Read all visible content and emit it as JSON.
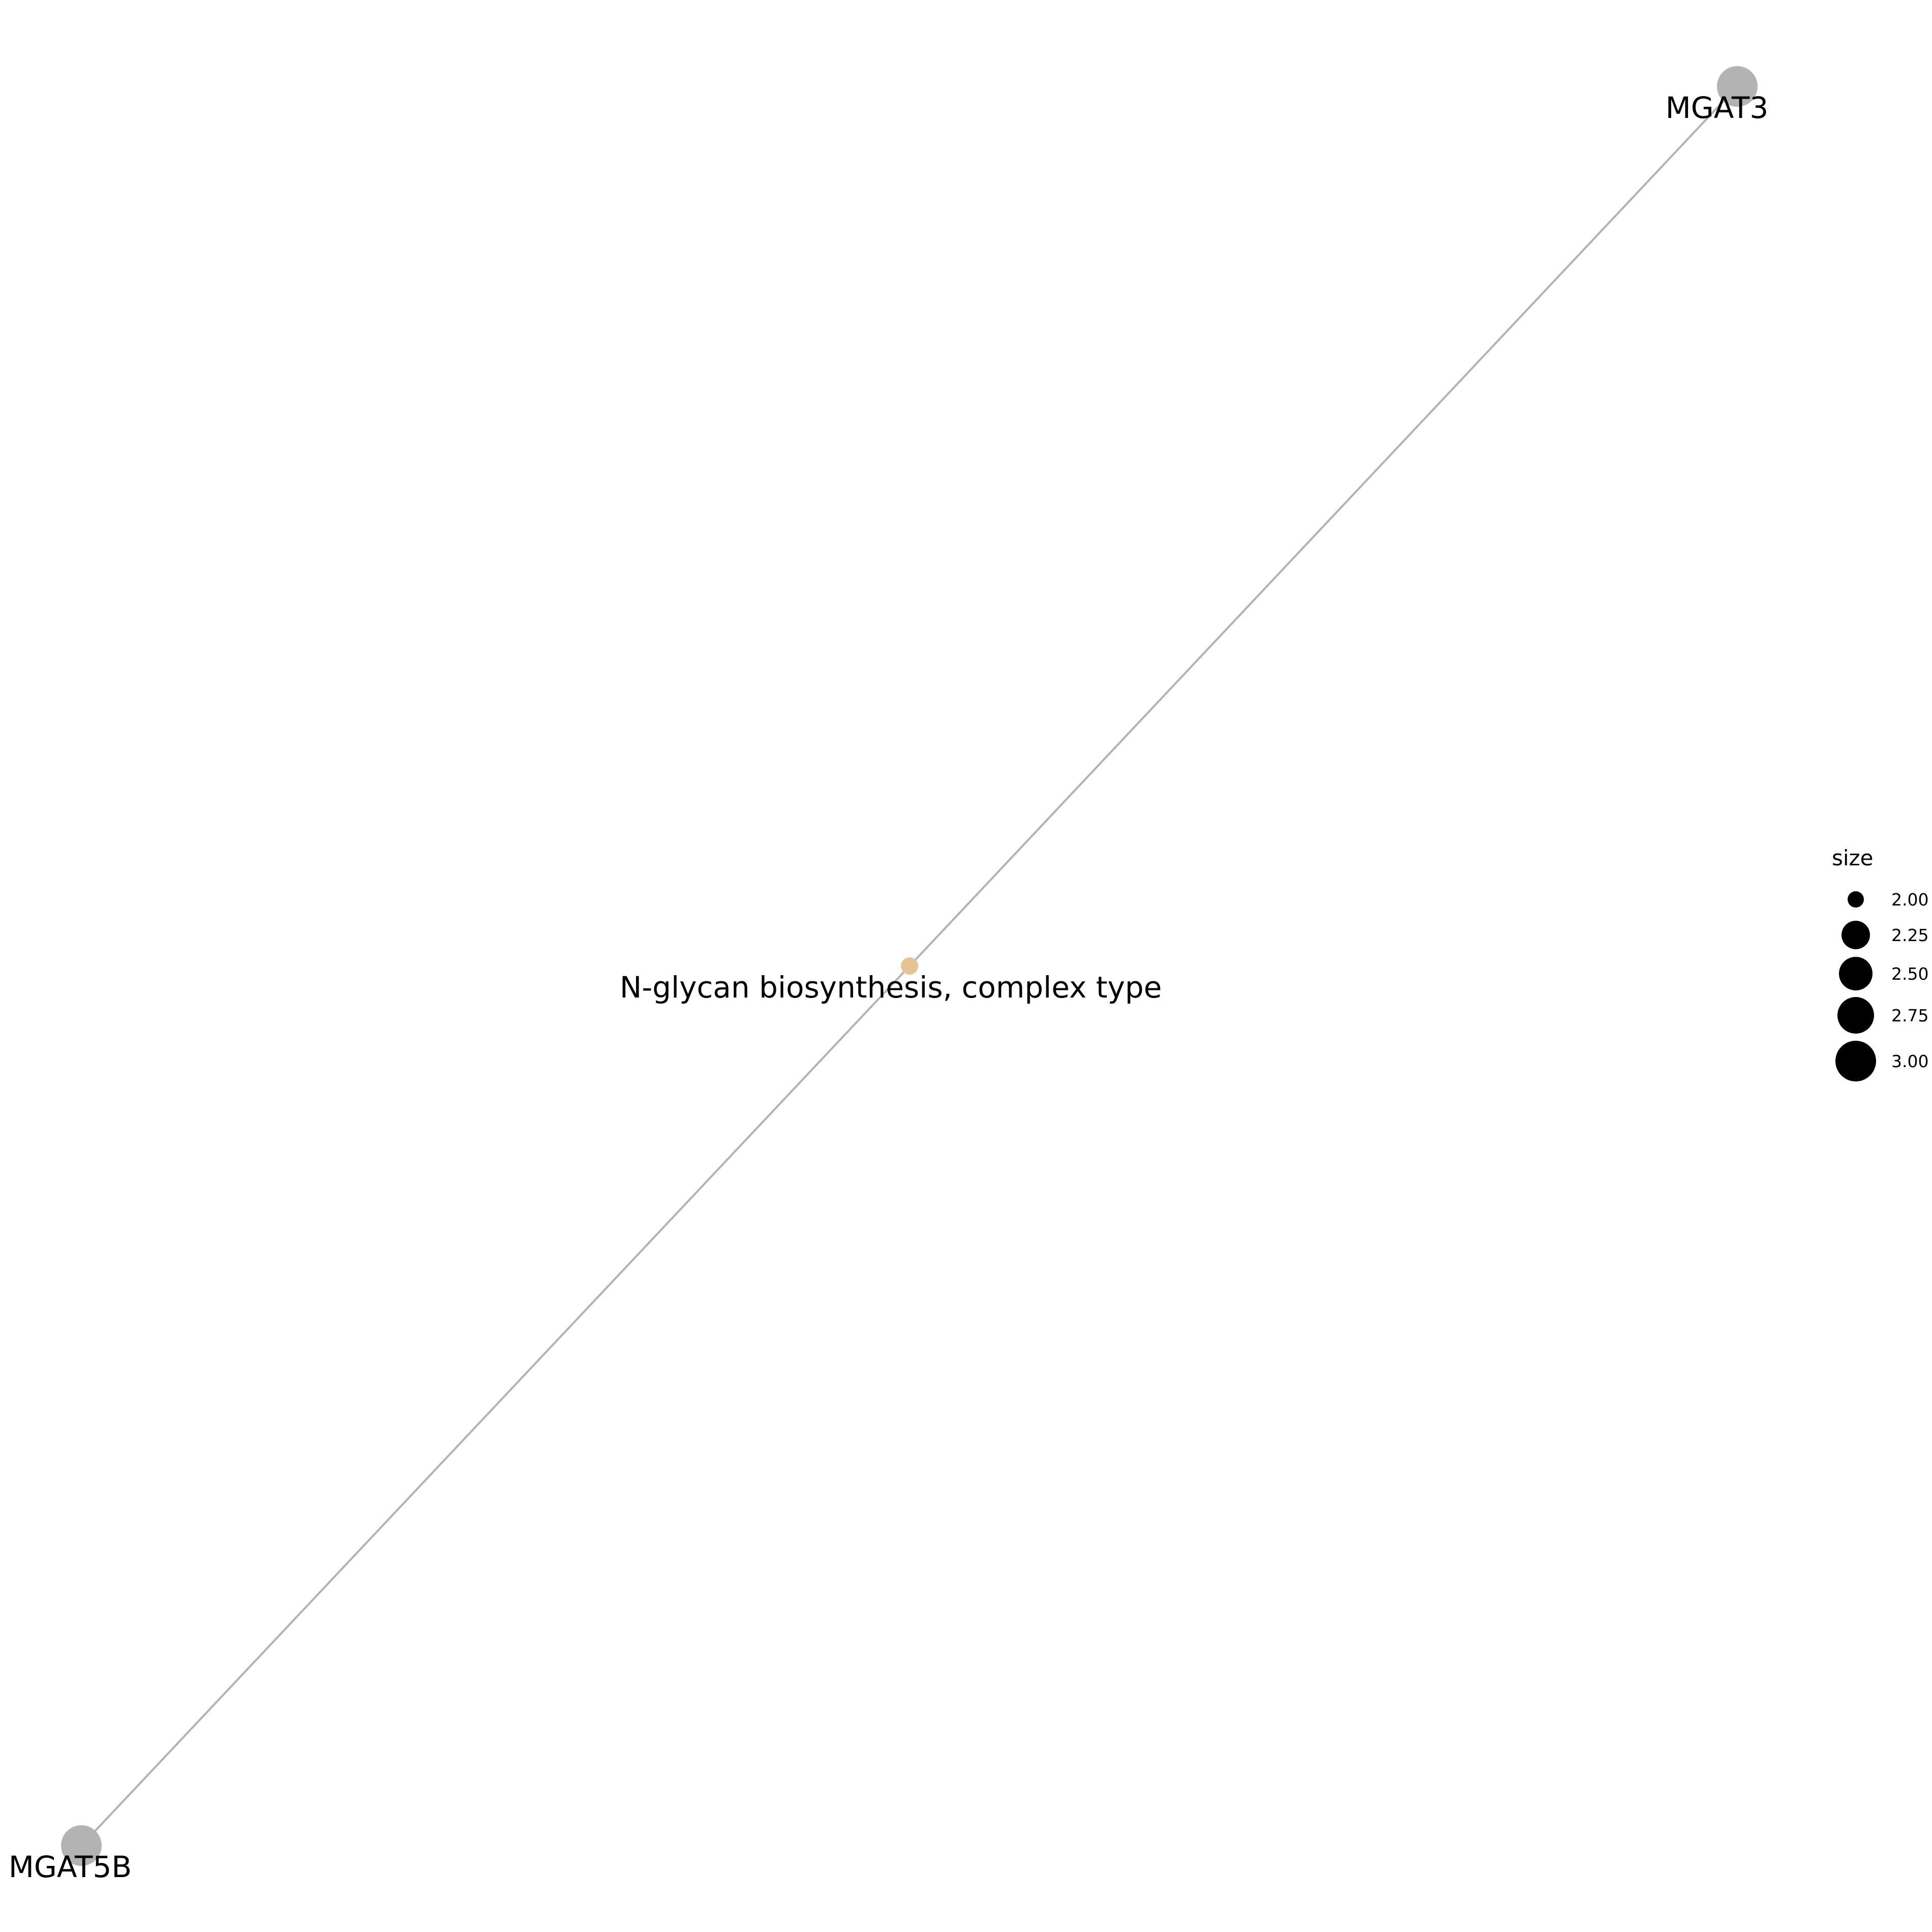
{
  "network": {
    "nodes": [
      {
        "id": "mgat3",
        "label": "MGAT3",
        "kind": "gene",
        "color": "#b3b3b3"
      },
      {
        "id": "pathway",
        "label": "N-glycan biosynthesis, complex type",
        "kind": "category",
        "color": "#e5c494"
      },
      {
        "id": "mgat5b",
        "label": "MGAT5B",
        "kind": "gene",
        "color": "#b3b3b3"
      }
    ],
    "edges": [
      {
        "from": "pathway",
        "to": "mgat3",
        "color": "#b3b3b3"
      },
      {
        "from": "pathway",
        "to": "mgat5b",
        "color": "#b3b3b3"
      }
    ]
  },
  "legend": {
    "title": "size",
    "items": [
      {
        "label": "2.00",
        "value": 2.0
      },
      {
        "label": "2.25",
        "value": 2.25
      },
      {
        "label": "2.50",
        "value": 2.5
      },
      {
        "label": "2.75",
        "value": 2.75
      },
      {
        "label": "3.00",
        "value": 3.0
      }
    ],
    "color": "#000000"
  }
}
